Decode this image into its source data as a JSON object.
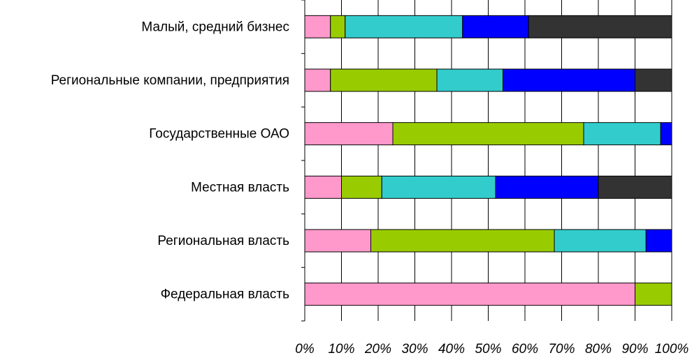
{
  "chart_data": {
    "type": "bar",
    "orientation": "horizontal",
    "stacked": true,
    "percent": true,
    "categories": [
      "Малый, средний бизнес",
      "Региональные компании, предприятия",
      "Государственные ОАО",
      "Местная власть",
      "Региональная власть",
      "Федеральная власть"
    ],
    "series": [
      {
        "color": "#ff99cc",
        "values": [
          7,
          7,
          24,
          10,
          18,
          90
        ]
      },
      {
        "color": "#99cc00",
        "values": [
          4,
          29,
          52,
          11,
          50,
          10
        ]
      },
      {
        "color": "#33cccc",
        "values": [
          32,
          18,
          21,
          31,
          25,
          0
        ]
      },
      {
        "color": "#0000ff",
        "values": [
          18,
          36,
          3,
          28,
          7,
          0
        ]
      },
      {
        "color": "#333333",
        "values": [
          39,
          10,
          0,
          20,
          0,
          0
        ]
      }
    ],
    "xlim": [
      0,
      100
    ],
    "xticks": [
      "0%",
      "10%",
      "20%",
      "30%",
      "40%",
      "50%",
      "60%",
      "70%",
      "80%",
      "90%",
      "100%"
    ],
    "grid": true,
    "legend": "none",
    "title": "",
    "xlabel": "",
    "ylabel": ""
  }
}
